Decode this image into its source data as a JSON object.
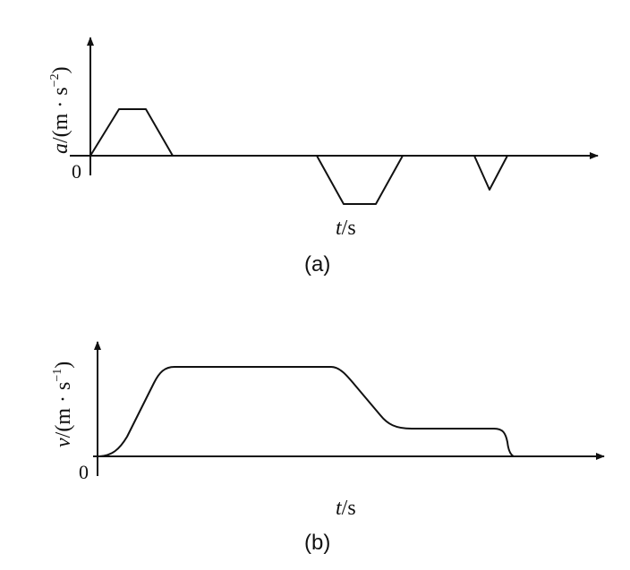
{
  "plot_a": {
    "y_label_var": "a",
    "y_label_unit": "/(m · s",
    "y_label_exp": "−2",
    "y_label_close": ")",
    "origin": "0",
    "x_label_var": "t",
    "x_label_unit": "/s",
    "caption": "(a)"
  },
  "plot_b": {
    "y_label_var": "v",
    "y_label_unit": "/(m · s",
    "y_label_exp": "−1",
    "y_label_close": ")",
    "origin": "0",
    "x_label_var": "t",
    "x_label_unit": "/s",
    "caption": "(b)"
  },
  "colors": {
    "line": "#111111",
    "background": "#ffffff"
  }
}
